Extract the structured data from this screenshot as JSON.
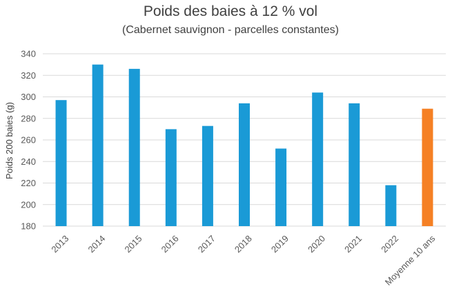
{
  "chart_data": {
    "type": "bar",
    "title": "Poids des baies à 12 % vol",
    "subtitle": "(Cabernet sauvignon - parcelles constantes)",
    "xlabel": "",
    "ylabel": "Poids 200 baies (g)",
    "ylim": [
      180,
      340
    ],
    "yticks": [
      "180",
      "200",
      "220",
      "240",
      "260",
      "280",
      "300",
      "320",
      "340"
    ],
    "grid": true,
    "categories": [
      "2013",
      "2014",
      "2015",
      "2016",
      "2017",
      "2018",
      "2019",
      "2020",
      "2021",
      "2022",
      "Moyenne 10 ans"
    ],
    "values": [
      297,
      330,
      326,
      270,
      273,
      294,
      252,
      304,
      294,
      218,
      289
    ],
    "colors": {
      "bar": "#1a9ad6",
      "highlight": "#f58024",
      "grid": "#d9d9d9"
    },
    "highlight_category": "Moyenne 10 ans"
  }
}
